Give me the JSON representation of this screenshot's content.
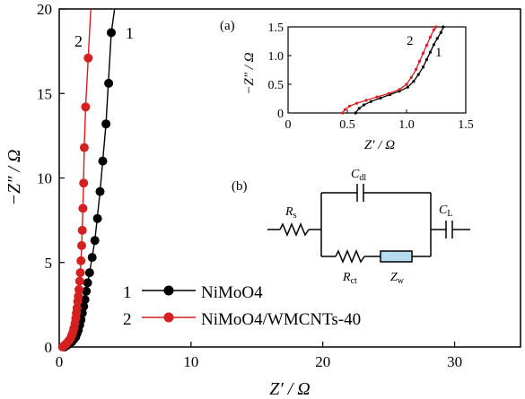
{
  "chart_data": [
    {
      "type": "scatter",
      "xlabel": "Z′ / Ω",
      "ylabel": "−Z″ / Ω",
      "xlim": [
        0,
        35
      ],
      "ylim": [
        0,
        20
      ],
      "xticks": [
        "0",
        "10",
        "20",
        "30"
      ],
      "yticks": [
        "0",
        "5",
        "10",
        "15",
        "20"
      ],
      "grid": false,
      "legend_position": "bottom-center",
      "series": [
        {
          "name": "NiMoO4",
          "number": "1",
          "color": "#000000",
          "points": [
            [
              0.4,
              0
            ],
            [
              0.6,
              0.1
            ],
            [
              0.75,
              0.2
            ],
            [
              0.95,
              0.3
            ],
            [
              1.1,
              0.45
            ],
            [
              1.25,
              0.6
            ],
            [
              1.35,
              0.8
            ],
            [
              1.45,
              1.0
            ],
            [
              1.55,
              1.3
            ],
            [
              1.65,
              1.6
            ],
            [
              1.75,
              2.0
            ],
            [
              1.85,
              2.4
            ],
            [
              1.95,
              2.8
            ],
            [
              2.05,
              3.3
            ],
            [
              2.15,
              3.8
            ],
            [
              2.3,
              4.4
            ],
            [
              2.5,
              5.3
            ],
            [
              2.7,
              6.3
            ],
            [
              2.9,
              7.6
            ],
            [
              3.1,
              9.2
            ],
            [
              3.3,
              11.0
            ],
            [
              3.55,
              13.2
            ],
            [
              3.75,
              15.6
            ],
            [
              3.95,
              18.6
            ]
          ],
          "line": [
            [
              0.3,
              0
            ],
            [
              0.5,
              0.05
            ],
            [
              0.7,
              0.15
            ],
            [
              1.0,
              0.35
            ],
            [
              1.25,
              0.6
            ],
            [
              1.45,
              1.0
            ],
            [
              1.7,
              1.8
            ],
            [
              2.0,
              3.0
            ],
            [
              2.3,
              4.4
            ],
            [
              2.7,
              6.3
            ],
            [
              3.1,
              9.2
            ],
            [
              3.55,
              13.2
            ],
            [
              3.95,
              18.6
            ],
            [
              4.2,
              21
            ]
          ]
        },
        {
          "name": "NiMoO4/WMCNTs-40",
          "number": "2",
          "color": "#d42020",
          "points": [
            [
              0.25,
              0
            ],
            [
              0.4,
              0.1
            ],
            [
              0.55,
              0.2
            ],
            [
              0.7,
              0.35
            ],
            [
              0.85,
              0.5
            ],
            [
              0.95,
              0.7
            ],
            [
              1.05,
              0.9
            ],
            [
              1.1,
              1.1
            ],
            [
              1.2,
              1.4
            ],
            [
              1.25,
              1.7
            ],
            [
              1.3,
              2.0
            ],
            [
              1.35,
              2.3
            ],
            [
              1.4,
              2.7
            ],
            [
              1.45,
              3.0
            ],
            [
              1.5,
              3.4
            ],
            [
              1.55,
              3.9
            ],
            [
              1.6,
              4.4
            ],
            [
              1.65,
              5.1
            ],
            [
              1.7,
              6.0
            ],
            [
              1.75,
              6.9
            ],
            [
              1.8,
              8.2
            ],
            [
              1.85,
              9.7
            ],
            [
              1.9,
              11.8
            ],
            [
              2.0,
              14.2
            ],
            [
              2.2,
              17.1
            ]
          ],
          "line": [
            [
              0.2,
              0
            ],
            [
              0.4,
              0.1
            ],
            [
              0.7,
              0.35
            ],
            [
              0.95,
              0.7
            ],
            [
              1.1,
              1.1
            ],
            [
              1.3,
              2.0
            ],
            [
              1.45,
              3.0
            ],
            [
              1.6,
              4.4
            ],
            [
              1.7,
              6.0
            ],
            [
              1.8,
              8.2
            ],
            [
              1.9,
              11.8
            ],
            [
              2.0,
              14.2
            ],
            [
              2.2,
              17.1
            ],
            [
              2.4,
              21
            ]
          ]
        }
      ]
    },
    {
      "type": "line",
      "panel_label": "(a)",
      "xlabel": "Z′ / Ω",
      "ylabel": "−Z″ / Ω",
      "xlim": [
        0,
        1.5
      ],
      "ylim": [
        0,
        1.5
      ],
      "xticks": [
        "0",
        "0.5",
        "1.0",
        "1.5"
      ],
      "yticks": [
        "0",
        "0.5",
        "1.0",
        "1.5"
      ],
      "series": [
        {
          "number": "1",
          "color": "#000000",
          "points": [
            [
              0.57,
              0
            ],
            [
              0.6,
              0.08
            ],
            [
              0.64,
              0.14
            ],
            [
              0.7,
              0.2
            ],
            [
              0.78,
              0.26
            ],
            [
              0.86,
              0.32
            ],
            [
              0.94,
              0.38
            ],
            [
              1.01,
              0.45
            ],
            [
              1.06,
              0.55
            ],
            [
              1.1,
              0.67
            ],
            [
              1.14,
              0.8
            ],
            [
              1.17,
              0.93
            ],
            [
              1.2,
              1.06
            ],
            [
              1.23,
              1.19
            ],
            [
              1.26,
              1.3
            ],
            [
              1.29,
              1.4
            ],
            [
              1.31,
              1.5
            ]
          ]
        },
        {
          "number": "2",
          "color": "#d42020",
          "points": [
            [
              0.46,
              0
            ],
            [
              0.48,
              0.06
            ],
            [
              0.52,
              0.12
            ],
            [
              0.58,
              0.17
            ],
            [
              0.66,
              0.22
            ],
            [
              0.75,
              0.28
            ],
            [
              0.85,
              0.34
            ],
            [
              0.94,
              0.41
            ],
            [
              1.0,
              0.5
            ],
            [
              1.04,
              0.62
            ],
            [
              1.08,
              0.76
            ],
            [
              1.11,
              0.9
            ],
            [
              1.14,
              1.04
            ],
            [
              1.17,
              1.18
            ],
            [
              1.2,
              1.32
            ],
            [
              1.23,
              1.45
            ],
            [
              1.25,
              1.5
            ]
          ]
        }
      ]
    }
  ],
  "circuit": {
    "panel_label": "(b)",
    "rs": {
      "main": "R",
      "sub": "s"
    },
    "cdl": {
      "main": "C",
      "sub": "dl"
    },
    "cl": {
      "main": "C",
      "sub": "L"
    },
    "rct": {
      "main": "R",
      "sub": "ct"
    },
    "zw": {
      "main": "Z",
      "sub": "w"
    },
    "zw_fill": "#b8dcef"
  }
}
